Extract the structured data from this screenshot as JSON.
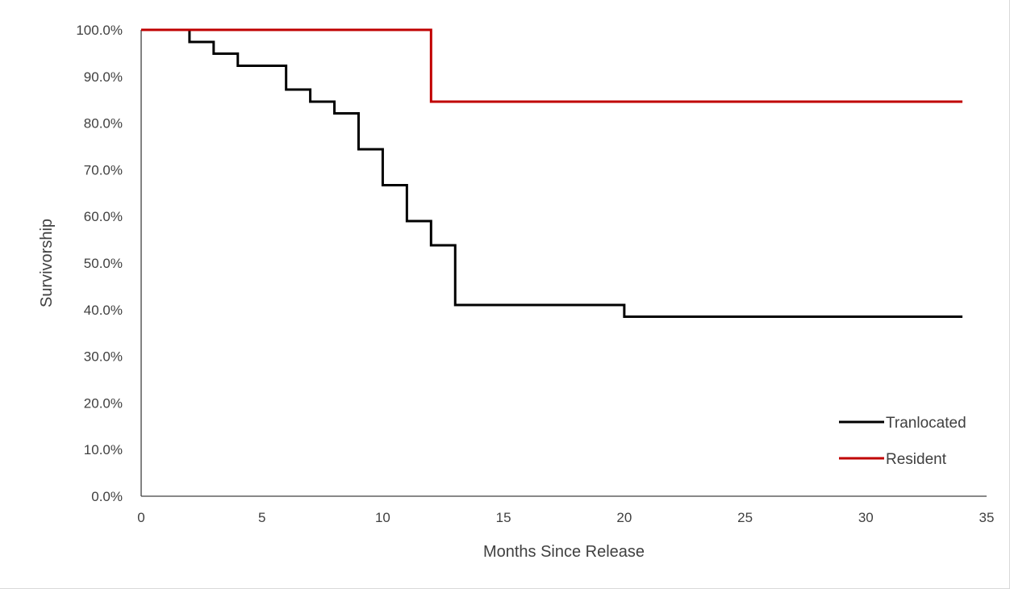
{
  "chart_data": {
    "type": "line",
    "step": true,
    "title": "",
    "xlabel": "Months Since Release",
    "ylabel": "Survivorship",
    "xlim": [
      0,
      35
    ],
    "ylim": [
      0,
      100
    ],
    "x_ticks": [
      0,
      5,
      10,
      15,
      20,
      25,
      30,
      35
    ],
    "y_ticks": [
      0,
      10,
      20,
      30,
      40,
      50,
      60,
      70,
      80,
      90,
      100
    ],
    "y_tick_labels": [
      "0.0%",
      "10.0%",
      "20.0%",
      "30.0%",
      "40.0%",
      "50.0%",
      "60.0%",
      "70.0%",
      "80.0%",
      "90.0%",
      "100.0%"
    ],
    "grid": false,
    "legend_position": "bottom-right",
    "series": [
      {
        "name": "Tranlocated",
        "color": "#000000",
        "x": [
          0,
          2,
          3,
          4,
          6,
          7,
          8,
          9,
          10,
          11,
          12,
          13,
          20,
          34
        ],
        "y": [
          100,
          97.4,
          94.9,
          92.3,
          87.2,
          84.6,
          82.1,
          74.4,
          66.7,
          59.0,
          53.8,
          41.0,
          38.5,
          38.5
        ]
      },
      {
        "name": "Resident",
        "color": "#c00000",
        "x": [
          0,
          12,
          34
        ],
        "y": [
          100,
          84.6,
          84.6
        ]
      }
    ]
  }
}
